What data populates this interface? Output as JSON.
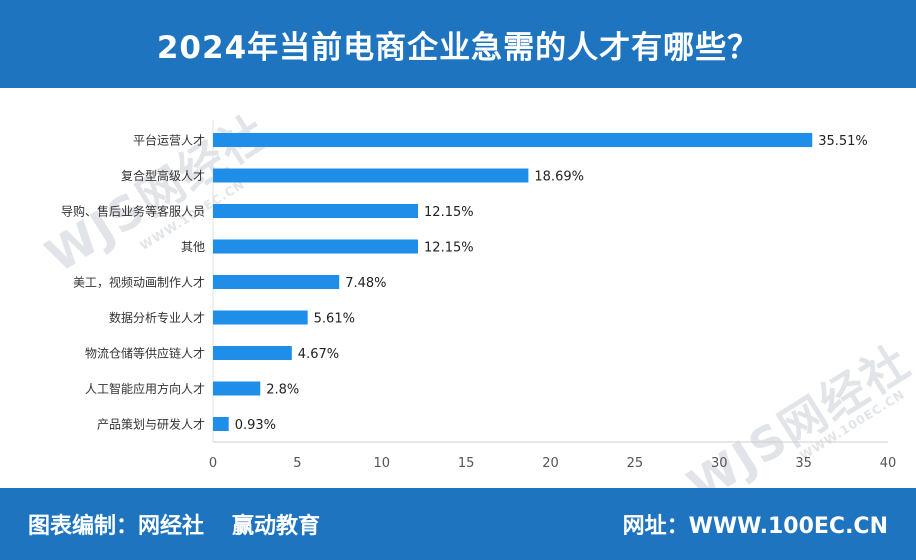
{
  "header": {
    "title": "2024年当前电商企业急需的人才有哪些？"
  },
  "footer": {
    "compiler_label": "图表编制：网经社",
    "partner": "赢动教育",
    "website": "网址：WWW.100EC.CN"
  },
  "watermark": {
    "logo": "WJS网经社",
    "site": "WWW.100EC.CN"
  },
  "colors": {
    "bar": "#1e8ee9",
    "header": "#1e74bf",
    "axis": "#555555"
  },
  "chart_data": {
    "type": "bar",
    "orientation": "horizontal",
    "categories": [
      "平台运营人才",
      "复合型高级人才",
      "导购、售后业务等客服人员",
      "其他",
      "美工，视频动画制作人才",
      "数据分析专业人才",
      "物流仓储等供应链人才",
      "人工智能应用方向人才",
      "产品策划与研发人才"
    ],
    "values": [
      35.51,
      18.69,
      12.15,
      12.15,
      7.48,
      5.61,
      4.67,
      2.8,
      0.93
    ],
    "value_labels": [
      "35.51%",
      "18.69%",
      "12.15%",
      "12.15%",
      "7.48%",
      "5.61%",
      "4.67%",
      "2.8%",
      "0.93%"
    ],
    "x_ticks": [
      "0",
      "5",
      "10",
      "15",
      "20",
      "25",
      "30",
      "35",
      "40"
    ],
    "xlim": [
      0,
      40
    ],
    "grid": false,
    "legend": "none"
  }
}
